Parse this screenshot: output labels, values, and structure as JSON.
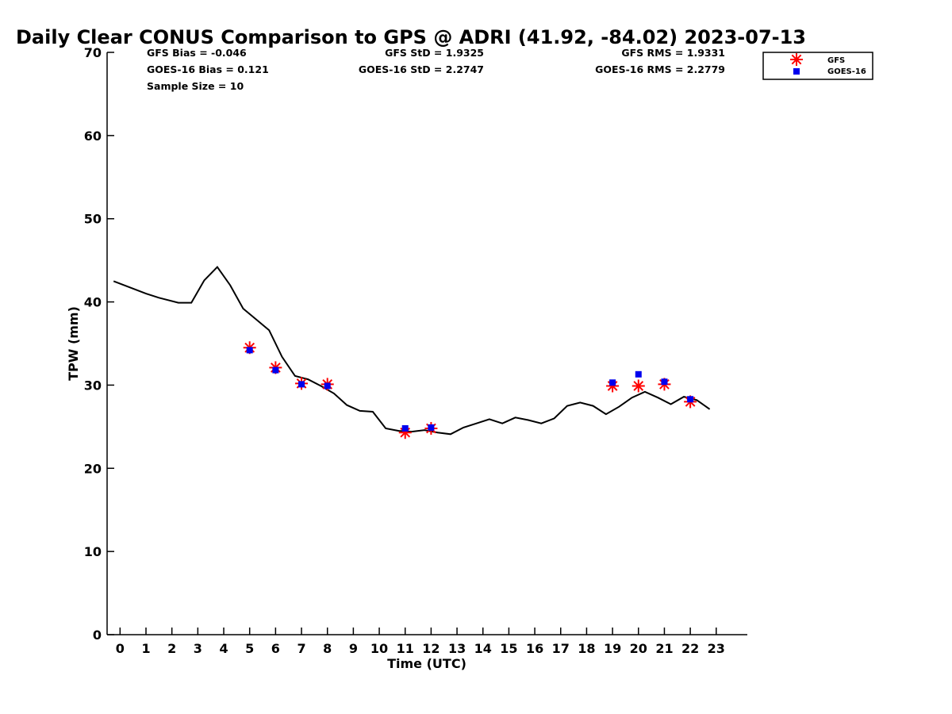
{
  "chart_data": {
    "type": "line",
    "title": "Daily Clear CONUS Comparison to GPS @ ADRI (41.92, -84.02) 2023-07-13",
    "xlabel": "Time (UTC)",
    "ylabel": "TPW (mm)",
    "xlim": [
      -0.5,
      24.2
    ],
    "ylim": [
      0,
      70
    ],
    "x_ticks": [
      0,
      1,
      2,
      3,
      4,
      5,
      6,
      7,
      8,
      9,
      10,
      11,
      12,
      13,
      14,
      15,
      16,
      17,
      18,
      19,
      20,
      21,
      22,
      23
    ],
    "y_ticks": [
      0,
      10,
      20,
      30,
      40,
      50,
      60,
      70
    ],
    "grid": false,
    "legend_position": "top-right",
    "stats": {
      "gfs_bias": "GFS Bias = -0.046",
      "goes_bias": "GOES-16 Bias = 0.121",
      "sample_size": "Sample Size = 10",
      "gfs_std": "GFS StD = 1.9325",
      "goes_std": "GOES-16 StD = 2.2747",
      "gfs_rms": "GFS RMS = 1.9331",
      "goes_rms": "GOES-16 RMS = 2.2779"
    },
    "series": [
      {
        "name": "",
        "style": "line",
        "color": "#000000",
        "x": [
          -0.25,
          0.5,
          1.0,
          1.5,
          2.25,
          2.75,
          3.25,
          3.75,
          4.25,
          4.75,
          5.25,
          5.75,
          6.25,
          6.75,
          7.25,
          7.75,
          8.25,
          8.75,
          9.25,
          9.75,
          10.25,
          10.75,
          11.25,
          11.75,
          12.25,
          12.75,
          13.25,
          13.75,
          14.25,
          14.75,
          15.25,
          15.75,
          16.25,
          16.75,
          17.25,
          17.75,
          18.25,
          18.75,
          19.25,
          19.75,
          20.25,
          20.75,
          21.25,
          21.75,
          22.25,
          22.75
        ],
        "y": [
          42.5,
          41.6,
          41.0,
          40.5,
          39.9,
          39.9,
          42.6,
          44.2,
          42.0,
          39.2,
          37.9,
          36.6,
          33.4,
          31.1,
          30.7,
          29.9,
          29.0,
          27.6,
          26.9,
          26.8,
          24.8,
          24.5,
          24.4,
          24.6,
          24.3,
          24.1,
          24.9,
          25.4,
          25.9,
          25.4,
          26.1,
          25.8,
          25.4,
          26.0,
          27.5,
          27.9,
          27.5,
          26.5,
          27.4,
          28.5,
          29.2,
          28.5,
          27.7,
          28.6,
          28.2,
          27.1
        ]
      },
      {
        "name": "GFS",
        "style": "asterisk",
        "color": "#ff0000",
        "x": [
          5,
          6,
          7,
          8,
          11,
          12,
          19,
          20,
          21,
          22
        ],
        "y": [
          34.5,
          32.1,
          30.2,
          30.1,
          24.3,
          24.8,
          29.9,
          29.9,
          30.1,
          28.0
        ]
      },
      {
        "name": "GOES-16",
        "style": "square",
        "color": "#0000ee",
        "x": [
          5,
          6,
          7,
          8,
          11,
          12,
          19,
          20,
          21,
          22
        ],
        "y": [
          34.2,
          31.8,
          30.1,
          29.9,
          24.8,
          24.9,
          30.3,
          31.3,
          30.4,
          28.3
        ]
      }
    ]
  }
}
